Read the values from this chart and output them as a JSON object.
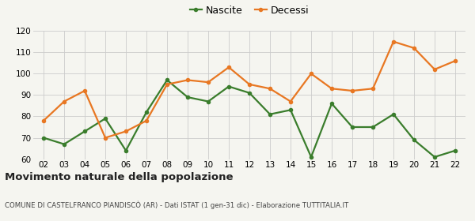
{
  "years": [
    "02",
    "03",
    "04",
    "05",
    "06",
    "07",
    "08",
    "09",
    "10",
    "11",
    "12",
    "13",
    "14",
    "15",
    "16",
    "17",
    "18",
    "19",
    "20",
    "21",
    "22"
  ],
  "nascite": [
    70,
    67,
    73,
    79,
    64,
    82,
    97,
    89,
    87,
    94,
    91,
    81,
    83,
    61,
    86,
    75,
    75,
    81,
    69,
    61,
    64
  ],
  "decessi": [
    78,
    87,
    92,
    70,
    73,
    78,
    95,
    97,
    96,
    103,
    95,
    93,
    87,
    100,
    93,
    92,
    93,
    115,
    112,
    102,
    106
  ],
  "nascite_color": "#3a7d2c",
  "decessi_color": "#e87722",
  "background_color": "#f5f5f0",
  "grid_color": "#cccccc",
  "ylim_min": 60,
  "ylim_max": 120,
  "yticks": [
    60,
    70,
    80,
    90,
    100,
    110,
    120
  ],
  "title": "Movimento naturale della popolazione",
  "subtitle": "COMUNE DI CASTELFRANCO PIANDISCÒ (AR) - Dati ISTAT (1 gen-31 dic) - Elaborazione TUTTITALIA.IT",
  "legend_nascite": "Nascite",
  "legend_decessi": "Decessi",
  "marker_size": 4,
  "line_width": 1.6
}
